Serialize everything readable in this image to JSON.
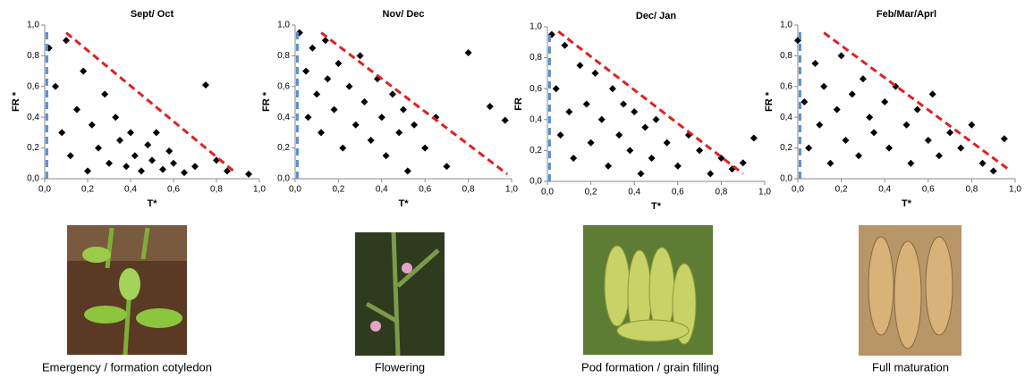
{
  "chart_data": [
    {
      "type": "scatter",
      "title": "Sept/ Oct",
      "x_label": "T*",
      "y_label": "FR *",
      "xlim": [
        0,
        1
      ],
      "ylim": [
        0,
        1
      ],
      "xticks": [
        {
          "value": 0,
          "label": "0,0"
        },
        {
          "value": 0.2,
          "label": "0,2"
        },
        {
          "value": 0.4,
          "label": "0,4"
        },
        {
          "value": 0.6,
          "label": "0,6"
        },
        {
          "value": 0.8,
          "label": "0,8"
        },
        {
          "value": 1,
          "label": "1,0"
        }
      ],
      "yticks": [
        {
          "value": 0,
          "label": "0,0"
        },
        {
          "value": 0.2,
          "label": "0,2"
        },
        {
          "value": 0.4,
          "label": "0,4"
        },
        {
          "value": 0.6,
          "label": "0,6"
        },
        {
          "value": 0.8,
          "label": "0,8"
        },
        {
          "value": 1,
          "label": "1,0"
        }
      ],
      "color": "#000000",
      "x": [
        0.02,
        0.05,
        0.08,
        0.1,
        0.12,
        0.15,
        0.18,
        0.2,
        0.22,
        0.25,
        0.28,
        0.3,
        0.33,
        0.35,
        0.38,
        0.4,
        0.42,
        0.45,
        0.48,
        0.5,
        0.52,
        0.55,
        0.58,
        0.6,
        0.65,
        0.7,
        0.75,
        0.8,
        0.85,
        0.95
      ],
      "values": [
        0.85,
        0.6,
        0.3,
        0.9,
        0.15,
        0.45,
        0.7,
        0.05,
        0.35,
        0.2,
        0.55,
        0.1,
        0.4,
        0.25,
        0.08,
        0.3,
        0.15,
        0.05,
        0.22,
        0.12,
        0.3,
        0.06,
        0.18,
        0.1,
        0.04,
        0.08,
        0.61,
        0.12,
        0.05,
        0.03
      ],
      "reference_lines": [
        {
          "color": "#e02020",
          "x": [
            0.1,
            0.88
          ],
          "y": [
            0.95,
            0.05
          ]
        },
        {
          "color": "#5b8fd0",
          "x": [
            0.01,
            0.01
          ],
          "y": [
            0,
            0.97
          ]
        }
      ]
    },
    {
      "type": "scatter",
      "title": "Nov/ Dec",
      "x_label": "T*",
      "y_label": "FR *",
      "xlim": [
        0,
        1
      ],
      "ylim": [
        0,
        1
      ],
      "xticks": [
        {
          "value": 0,
          "label": "0,0"
        },
        {
          "value": 0.2,
          "label": "0,2"
        },
        {
          "value": 0.4,
          "label": "0,4"
        },
        {
          "value": 0.6,
          "label": "0,6"
        },
        {
          "value": 0.8,
          "label": "0,8"
        },
        {
          "value": 1,
          "label": "1,0"
        }
      ],
      "yticks": [
        {
          "value": 0,
          "label": "0,0"
        },
        {
          "value": 0.2,
          "label": "0,2"
        },
        {
          "value": 0.4,
          "label": "0,4"
        },
        {
          "value": 0.6,
          "label": "0,6"
        },
        {
          "value": 0.8,
          "label": "0,8"
        },
        {
          "value": 1,
          "label": "1,0"
        }
      ],
      "color": "#000000",
      "x": [
        0.02,
        0.05,
        0.06,
        0.08,
        0.1,
        0.12,
        0.14,
        0.15,
        0.18,
        0.2,
        0.22,
        0.25,
        0.28,
        0.3,
        0.32,
        0.35,
        0.38,
        0.4,
        0.42,
        0.45,
        0.48,
        0.5,
        0.52,
        0.55,
        0.6,
        0.65,
        0.7,
        0.8,
        0.9,
        0.97
      ],
      "values": [
        0.95,
        0.7,
        0.4,
        0.85,
        0.55,
        0.3,
        0.9,
        0.65,
        0.45,
        0.75,
        0.2,
        0.6,
        0.35,
        0.8,
        0.5,
        0.25,
        0.65,
        0.4,
        0.15,
        0.55,
        0.3,
        0.45,
        0.05,
        0.35,
        0.2,
        0.4,
        0.08,
        0.82,
        0.47,
        0.38
      ],
      "reference_lines": [
        {
          "color": "#e02020",
          "x": [
            0.12,
            0.98
          ],
          "y": [
            0.95,
            0.03
          ]
        },
        {
          "color": "#5b8fd0",
          "x": [
            0.01,
            0.01
          ],
          "y": [
            0,
            0.97
          ]
        }
      ]
    },
    {
      "type": "scatter",
      "title": "Dec/ Jan",
      "x_label": "T*",
      "y_label": "FR",
      "xlim": [
        0,
        1
      ],
      "ylim": [
        0,
        1
      ],
      "xticks": [
        {
          "value": 0,
          "label": "0,0"
        },
        {
          "value": 0.2,
          "label": "0,2"
        },
        {
          "value": 0.4,
          "label": "0,4"
        },
        {
          "value": 0.6,
          "label": "0,6"
        },
        {
          "value": 0.8,
          "label": "0,8"
        },
        {
          "value": 1,
          "label": "1,0"
        }
      ],
      "yticks": [
        {
          "value": 0,
          "label": "0,0"
        },
        {
          "value": 0.2,
          "label": "0,2"
        },
        {
          "value": 0.4,
          "label": "0,4"
        },
        {
          "value": 0.6,
          "label": "0,6"
        },
        {
          "value": 0.8,
          "label": "0,8"
        },
        {
          "value": 1,
          "label": "1,0"
        }
      ],
      "color": "#000000",
      "x": [
        0.02,
        0.04,
        0.06,
        0.08,
        0.1,
        0.12,
        0.15,
        0.18,
        0.2,
        0.22,
        0.25,
        0.28,
        0.3,
        0.33,
        0.35,
        0.38,
        0.4,
        0.43,
        0.45,
        0.48,
        0.5,
        0.55,
        0.6,
        0.65,
        0.7,
        0.75,
        0.8,
        0.85,
        0.9,
        0.95
      ],
      "values": [
        0.95,
        0.6,
        0.3,
        0.88,
        0.45,
        0.15,
        0.75,
        0.5,
        0.25,
        0.7,
        0.4,
        0.1,
        0.6,
        0.3,
        0.5,
        0.2,
        0.45,
        0.05,
        0.35,
        0.15,
        0.4,
        0.25,
        0.1,
        0.3,
        0.2,
        0.05,
        0.15,
        0.08,
        0.12,
        0.28
      ],
      "reference_lines": [
        {
          "color": "#e02020",
          "x": [
            0.05,
            0.9
          ],
          "y": [
            0.97,
            0.05
          ]
        },
        {
          "color": "#5b8fd0",
          "x": [
            0.01,
            0.01
          ],
          "y": [
            0,
            0.97
          ]
        }
      ]
    },
    {
      "type": "scatter",
      "title": "Feb/Mar/Aprl",
      "x_label": "T*",
      "y_label": "FR *",
      "xlim": [
        0,
        1
      ],
      "ylim": [
        0,
        1
      ],
      "xticks": [
        {
          "value": 0,
          "label": "0,0"
        },
        {
          "value": 0.2,
          "label": "0,2"
        },
        {
          "value": 0.4,
          "label": "0,4"
        },
        {
          "value": 0.6,
          "label": "0,6"
        },
        {
          "value": 0.8,
          "label": "0,8"
        },
        {
          "value": 1,
          "label": "1,0"
        }
      ],
      "yticks": [
        {
          "value": 0,
          "label": "0,0"
        },
        {
          "value": 0.2,
          "label": "0,2"
        },
        {
          "value": 0.4,
          "label": "0,4"
        },
        {
          "value": 0.6,
          "label": "0,6"
        },
        {
          "value": 0.8,
          "label": "0,8"
        },
        {
          "value": 1,
          "label": "1,0"
        }
      ],
      "color": "#000000",
      "x": [
        0.0,
        0.03,
        0.05,
        0.08,
        0.1,
        0.12,
        0.15,
        0.18,
        0.2,
        0.22,
        0.25,
        0.28,
        0.3,
        0.33,
        0.35,
        0.4,
        0.42,
        0.45,
        0.5,
        0.52,
        0.55,
        0.6,
        0.62,
        0.65,
        0.7,
        0.75,
        0.8,
        0.85,
        0.9,
        0.95
      ],
      "values": [
        0.9,
        0.5,
        0.2,
        0.75,
        0.35,
        0.6,
        0.1,
        0.45,
        0.8,
        0.25,
        0.55,
        0.15,
        0.65,
        0.4,
        0.3,
        0.5,
        0.2,
        0.6,
        0.35,
        0.1,
        0.45,
        0.25,
        0.55,
        0.15,
        0.3,
        0.2,
        0.35,
        0.1,
        0.05,
        0.26
      ],
      "reference_lines": [
        {
          "color": "#e02020",
          "x": [
            0.12,
            0.98
          ],
          "y": [
            0.95,
            0.05
          ]
        },
        {
          "color": "#5b8fd0",
          "x": [
            0.01,
            0.01
          ],
          "y": [
            0,
            0.97
          ]
        }
      ]
    }
  ],
  "captions": [
    "Emergency / formation cotyledon",
    "Flowering",
    "Pod formation / grain filling",
    "Full maturation"
  ]
}
